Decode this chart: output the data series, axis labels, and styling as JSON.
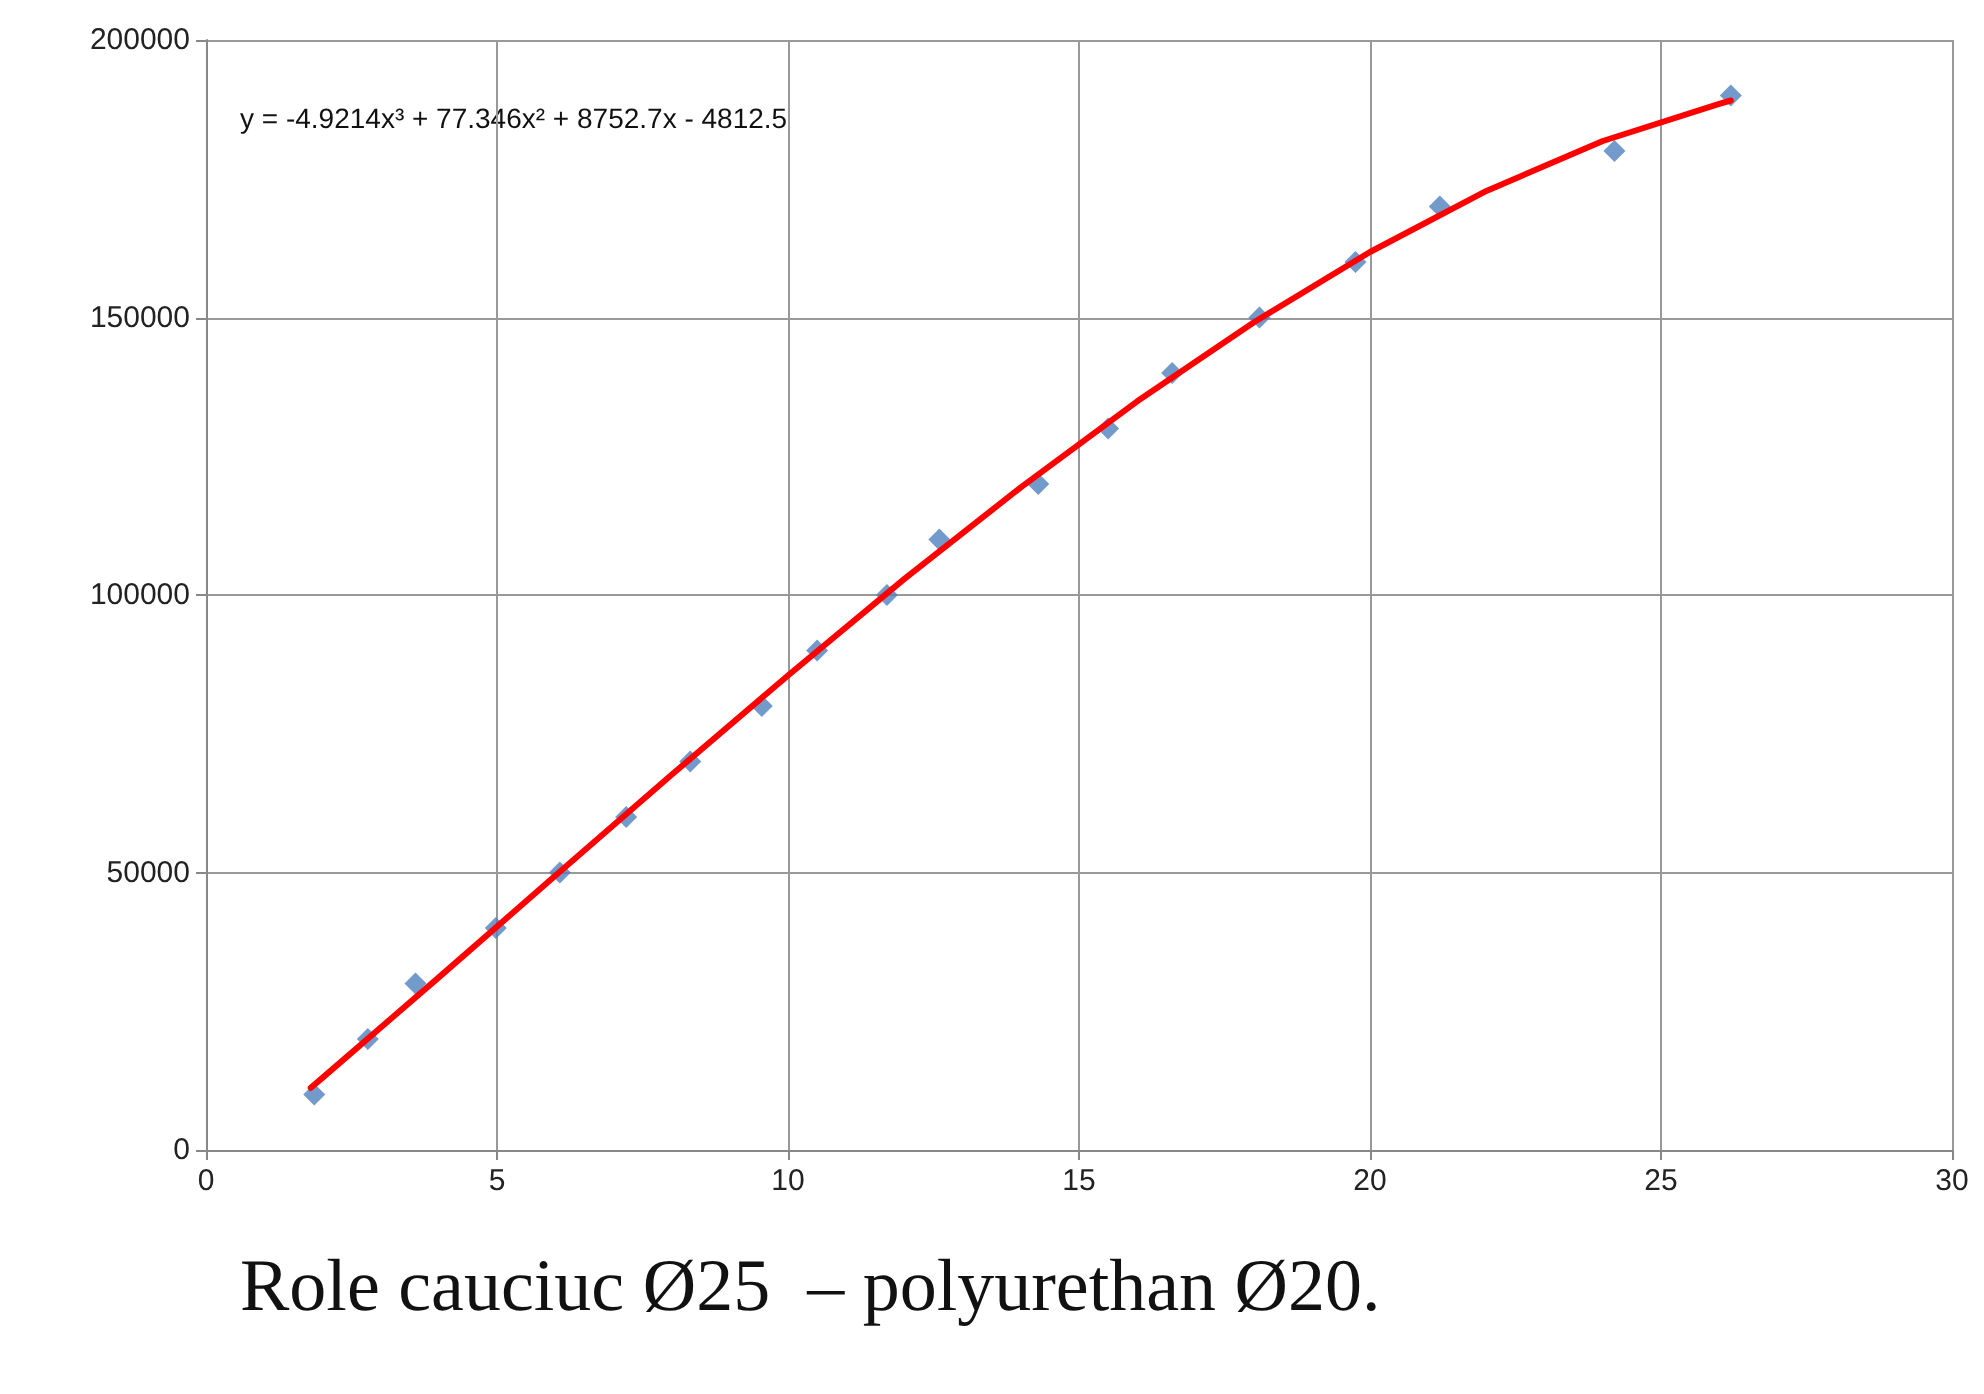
{
  "chart_data": {
    "type": "scatter",
    "annotations": [
      "y = -4.9214x³ + 77.346x² + 8752.7x - 4812.5",
      "Role cauciuc Ø25  – polyurethan Ø20."
    ],
    "xlim": [
      0,
      30
    ],
    "xticks": [
      0,
      5,
      10,
      15,
      20,
      25,
      30
    ],
    "ylim": [
      0,
      200000
    ],
    "yticks": [
      0,
      50000,
      100000,
      150000,
      200000
    ],
    "grid": true,
    "marker": "diamond",
    "series": [
      {
        "color": "#4f81bd",
        "x": [
          1.86,
          2.78,
          3.6,
          4.98,
          6.08,
          7.22,
          8.32,
          9.55,
          10.5,
          11.7,
          12.6,
          14.3,
          15.5,
          16.6,
          18.1,
          19.75,
          21.2,
          24.2,
          26.2
        ],
        "values": [
          10000,
          20000,
          30000,
          40000,
          50000,
          60000,
          70000,
          80000,
          90000,
          100000,
          110000,
          120000,
          130000,
          140000,
          150000,
          160000,
          170000,
          180000,
          190000
        ]
      },
      {
        "type": "line",
        "color": "#ff0000",
        "marker": "none",
        "x": [
          1.8,
          2,
          4,
          6,
          8,
          10,
          12,
          14,
          16,
          18,
          20,
          22,
          24,
          26,
          26.2
        ],
        "values": [
          11200,
          13000,
          31100,
          49400,
          67600,
          85500,
          102900,
          119400,
          134900,
          149100,
          161800,
          172800,
          181800,
          188500,
          189100
        ]
      }
    ]
  }
}
